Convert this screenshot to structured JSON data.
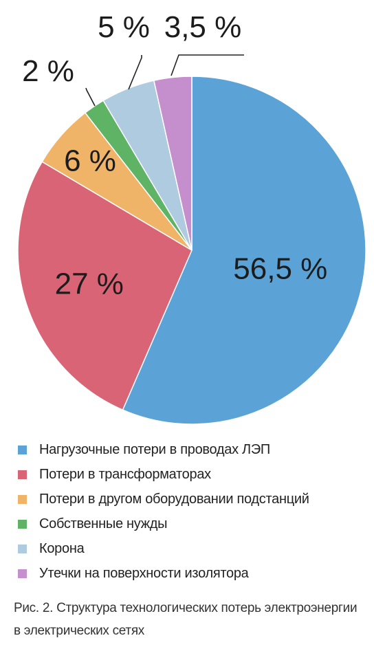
{
  "chart_data": {
    "type": "pie",
    "title": "",
    "categories": [
      "Нагрузочные потери в проводах ЛЭП",
      "Потери в трансформаторах",
      "Потери в другом оборудовании подстанций",
      "Собственные нужды",
      "Корона",
      "Утечки на поверхности изолятора"
    ],
    "values": [
      56.5,
      27,
      6,
      2,
      5,
      3.5
    ],
    "data_labels": [
      "56,5 %",
      "27 %",
      "6 %",
      "2 %",
      "5 %",
      "3,5 %"
    ],
    "colors": [
      "#5ba3d6",
      "#d96475",
      "#f0b468",
      "#5fb365",
      "#aecbe0",
      "#c48fcc"
    ],
    "start": "12 o'clock",
    "direction": "clockwise",
    "legend_position": "bottom"
  },
  "caption": {
    "line1": "Рис. 2. Структура технологических потерь электроэнергии",
    "line2": "в электрических сетях"
  }
}
